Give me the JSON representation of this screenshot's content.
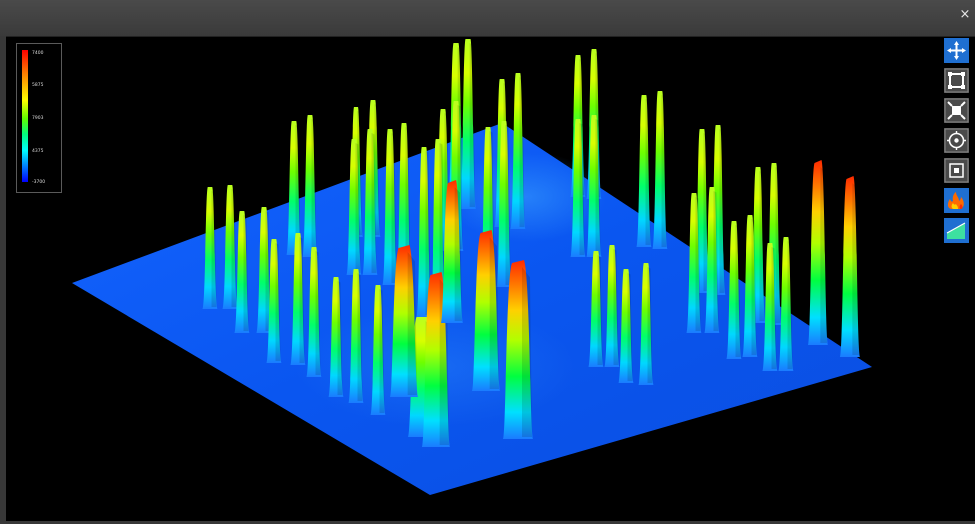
{
  "window": {
    "close_glyph": "×"
  },
  "legend": {
    "ticks": [
      "7400",
      "5875",
      "7903",
      "4375",
      "-3700"
    ],
    "colors": [
      "#ff0000",
      "#ff8000",
      "#ffff00",
      "#00ff00",
      "#00ffff",
      "#0000ff"
    ]
  },
  "toolbar": {
    "tools": [
      {
        "icon": "move-icon",
        "active": true
      },
      {
        "icon": "zoom-extents-icon",
        "active": false
      },
      {
        "icon": "fit-view-icon",
        "active": false
      },
      {
        "icon": "rotate-view-icon",
        "active": false
      },
      {
        "icon": "zoom-region-icon",
        "active": false
      },
      {
        "icon": "color-map-icon",
        "active": true
      },
      {
        "icon": "surface-profile-icon",
        "active": true
      }
    ]
  }
}
